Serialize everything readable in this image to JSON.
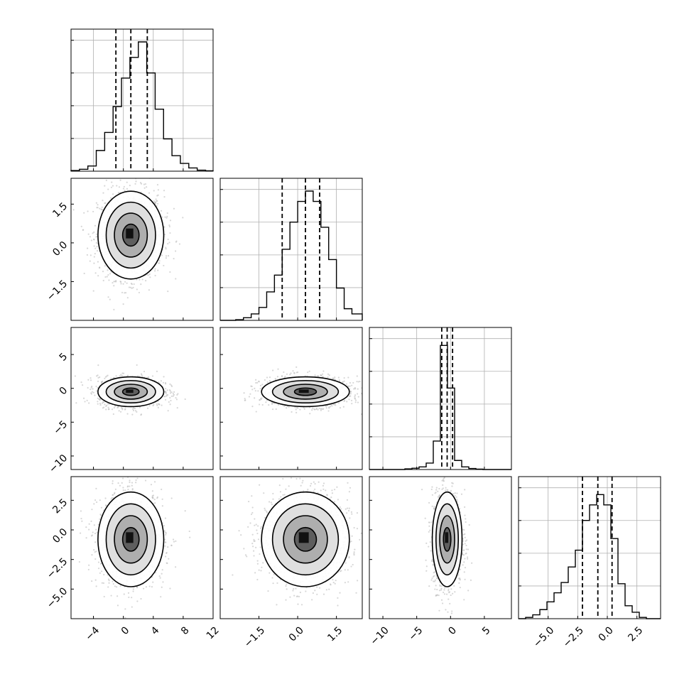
{
  "chart_data": {
    "type": "scatter",
    "figure": "corner-plot",
    "n_dims": 4,
    "quantiles": [
      0.16,
      0.5,
      0.84
    ],
    "grid": true,
    "histograms": [
      {
        "dim": 0,
        "xlim": [
          -7,
          12
        ],
        "bin_edges": [
          -7,
          -5.875,
          -4.75,
          -3.625,
          -2.5,
          -1.375,
          -0.25,
          0.875,
          2.0,
          3.125,
          4.25,
          5.375,
          6.5,
          7.625,
          8.75,
          9.875,
          11.0,
          12.0
        ],
        "counts": [
          0.005,
          0.015,
          0.04,
          0.16,
          0.3,
          0.5,
          0.72,
          0.88,
          1.0,
          0.76,
          0.48,
          0.25,
          0.12,
          0.06,
          0.025,
          0.008,
          0.003
        ],
        "quantile_values": [
          -1.0,
          1.0,
          3.2
        ]
      },
      {
        "dim": 1,
        "xlim": [
          -3.0,
          2.5
        ],
        "bin_edges": [
          -3.0,
          -2.7,
          -2.4,
          -2.1,
          -1.8,
          -1.5,
          -1.2,
          -0.9,
          -0.6,
          -0.3,
          0.0,
          0.3,
          0.6,
          0.9,
          1.2,
          1.5,
          1.8,
          2.1,
          2.5
        ],
        "counts": [
          0.0,
          0.0,
          0.005,
          0.02,
          0.05,
          0.1,
          0.22,
          0.35,
          0.55,
          0.76,
          0.92,
          1.0,
          0.92,
          0.72,
          0.47,
          0.25,
          0.09,
          0.05
        ],
        "quantile_values": [
          -0.6,
          0.3,
          0.85
        ]
      },
      {
        "dim": 2,
        "xlim": [
          -12,
          9
        ],
        "bin_edges": [
          -12,
          -10.95,
          -9.9,
          -8.85,
          -7.8,
          -6.75,
          -5.7,
          -4.65,
          -3.6,
          -2.55,
          -1.5,
          -0.45,
          0.6,
          1.65,
          2.7,
          3.75,
          4.8,
          5.85,
          6.9,
          9.0
        ],
        "counts": [
          0.0,
          0.0,
          0.0,
          0.0,
          0.0,
          0.005,
          0.01,
          0.02,
          0.05,
          0.22,
          0.96,
          0.63,
          0.07,
          0.02,
          0.008,
          0.003,
          0.0,
          0.0,
          0.0
        ],
        "quantile_values": [
          -1.3,
          -0.5,
          0.3
        ]
      },
      {
        "dim": 3,
        "xlim": [
          -7.5,
          4.5
        ],
        "bin_edges": [
          -7.5,
          -6.9,
          -6.3,
          -5.7,
          -5.1,
          -4.5,
          -3.9,
          -3.3,
          -2.7,
          -2.1,
          -1.5,
          -0.9,
          -0.3,
          0.3,
          0.9,
          1.5,
          2.1,
          2.7,
          3.3,
          3.9,
          4.5
        ],
        "counts": [
          0.0,
          0.01,
          0.03,
          0.07,
          0.13,
          0.2,
          0.28,
          0.4,
          0.53,
          0.76,
          0.88,
          0.96,
          0.88,
          0.62,
          0.27,
          0.1,
          0.05,
          0.01,
          0.0,
          0.0
        ],
        "quantile_values": [
          -2.1,
          -0.8,
          0.4
        ]
      }
    ],
    "scatter_panels": [
      {
        "x_dim": 0,
        "y_dim": 1,
        "center": [
          1.0,
          0.3
        ],
        "spread": [
          2.2,
          0.85
        ]
      },
      {
        "x_dim": 0,
        "y_dim": 2,
        "center": [
          1.0,
          -0.5
        ],
        "spread": [
          2.2,
          1.1
        ]
      },
      {
        "x_dim": 1,
        "y_dim": 2,
        "center": [
          0.3,
          -0.5
        ],
        "spread": [
          0.85,
          1.1
        ]
      },
      {
        "x_dim": 0,
        "y_dim": 3,
        "center": [
          1.0,
          -0.8
        ],
        "spread": [
          2.2,
          2.0
        ]
      },
      {
        "x_dim": 1,
        "y_dim": 3,
        "center": [
          0.3,
          -0.8
        ],
        "spread": [
          0.85,
          2.0
        ]
      },
      {
        "x_dim": 2,
        "y_dim": 3,
        "center": [
          -0.5,
          -0.8
        ],
        "spread": [
          1.1,
          2.0
        ]
      }
    ],
    "axes": [
      {
        "dim": 0,
        "lim": [
          -7,
          12
        ],
        "ticks": [
          -4,
          0,
          4,
          8,
          12
        ],
        "tick_labels": [
          "−4",
          "0",
          "4",
          "8",
          "12"
        ]
      },
      {
        "dim": 1,
        "lim": [
          -3.0,
          2.5
        ],
        "ticks": [
          -1.5,
          0.0,
          1.5
        ],
        "tick_labels": [
          "−1.5",
          "0.0",
          "1.5"
        ]
      },
      {
        "dim": 2,
        "lim": [
          -12,
          9
        ],
        "ticks": [
          -10,
          -5,
          0,
          5
        ],
        "tick_labels": [
          "−10",
          "−5",
          "0",
          "5"
        ]
      },
      {
        "dim": 3,
        "lim": [
          -7.5,
          4.5
        ],
        "ticks": [
          -5.0,
          -2.5,
          0.0,
          2.5
        ],
        "tick_labels": [
          "−5.0",
          "−2.5",
          "0.0",
          "2.5"
        ]
      }
    ],
    "colors": {
      "contour": "#000000",
      "points": "#bdbdbd",
      "density": "#000000",
      "grid": "#b0b0b0",
      "quantile_line": "#000000"
    }
  }
}
